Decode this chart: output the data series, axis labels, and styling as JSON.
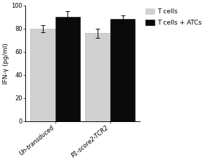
{
  "categories": [
    "Un-transduced",
    "P1-score2-TCR2"
  ],
  "t_cells_values": [
    80,
    76
  ],
  "t_cells_atcs_values": [
    90,
    88
  ],
  "t_cells_errors": [
    3,
    4
  ],
  "t_cells_atcs_errors": [
    5,
    3.5
  ],
  "t_cells_color": "#d0d0d0",
  "t_cells_atcs_color": "#0a0a0a",
  "ylabel": "IFN-γ (pg/ml)",
  "ylim": [
    0,
    100
  ],
  "yticks": [
    0,
    20,
    40,
    60,
    80,
    100
  ],
  "legend_labels": [
    "T cells",
    "T cells + ATCs"
  ],
  "bar_width": 0.25,
  "group_positions": [
    0.3,
    0.85
  ],
  "background_color": "#ffffff",
  "axis_fontsize": 6.5,
  "tick_fontsize": 6,
  "legend_fontsize": 6.5,
  "error_capsize": 2,
  "error_linewidth": 0.7,
  "bar_edge_color_light": "#aaaaaa",
  "bar_edge_color_dark": "#0a0a0a"
}
